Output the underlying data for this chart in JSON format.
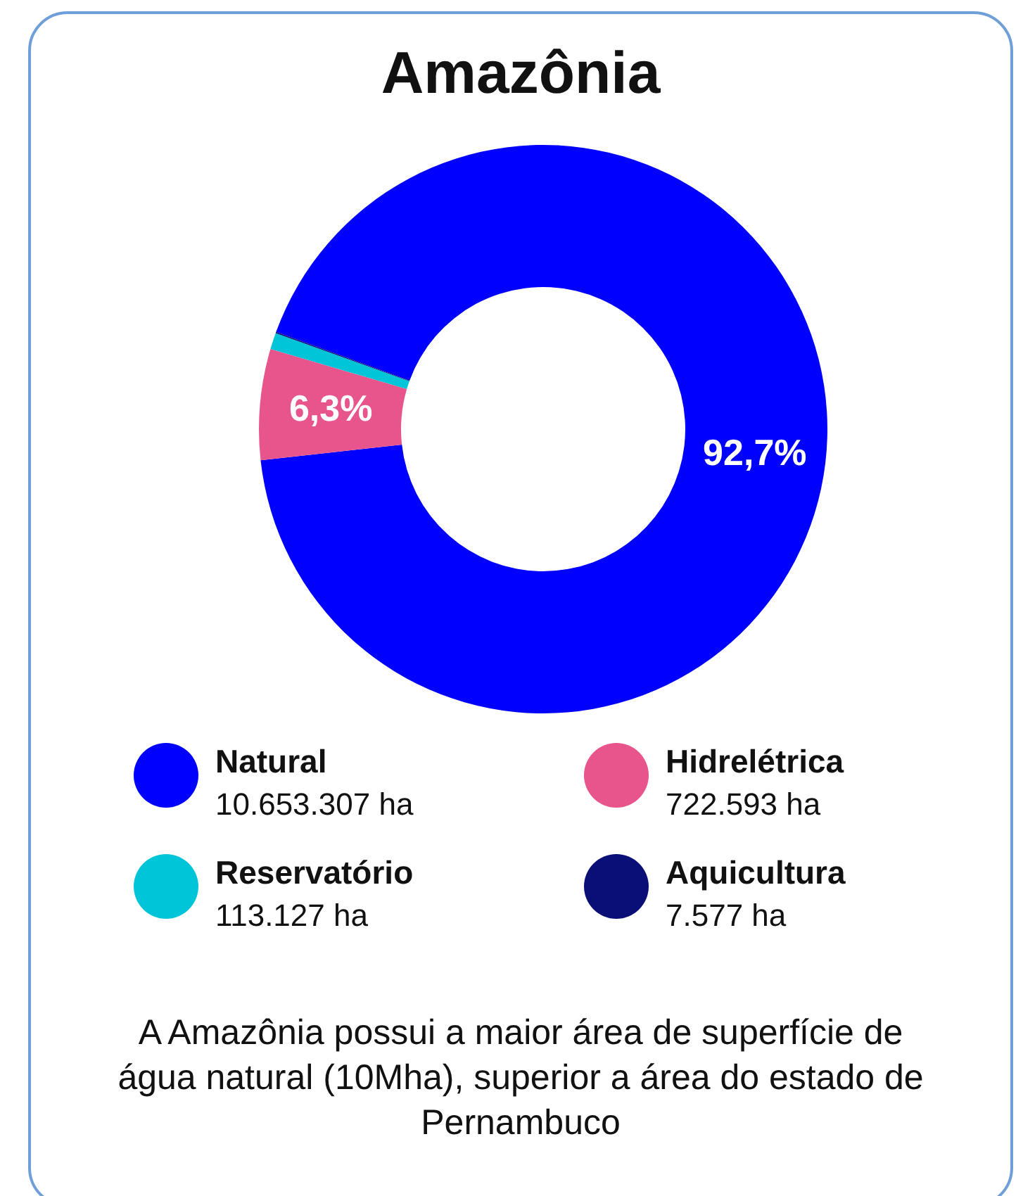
{
  "chart_data": {
    "type": "donut",
    "title": "Amazônia",
    "categories": [
      "Natural",
      "Hidrelétrica",
      "Reservatório",
      "Aquicultura"
    ],
    "values": [
      92.7,
      6.3,
      0.93,
      0.07
    ],
    "colors": [
      "#0000ff",
      "#e8548c",
      "#00c4d8",
      "#0a0f78"
    ],
    "value_labels": [
      "92,7%",
      "6,3%",
      null,
      null
    ],
    "legend": "bottom",
    "annotations": [
      "10.653.307 ha",
      "722.593 ha",
      "113.127 ha",
      "7.577 ha",
      "A Amazônia possui a maior área de superfície de água natural (10Mha), superior a área do estado de Pernambuco"
    ]
  }
}
